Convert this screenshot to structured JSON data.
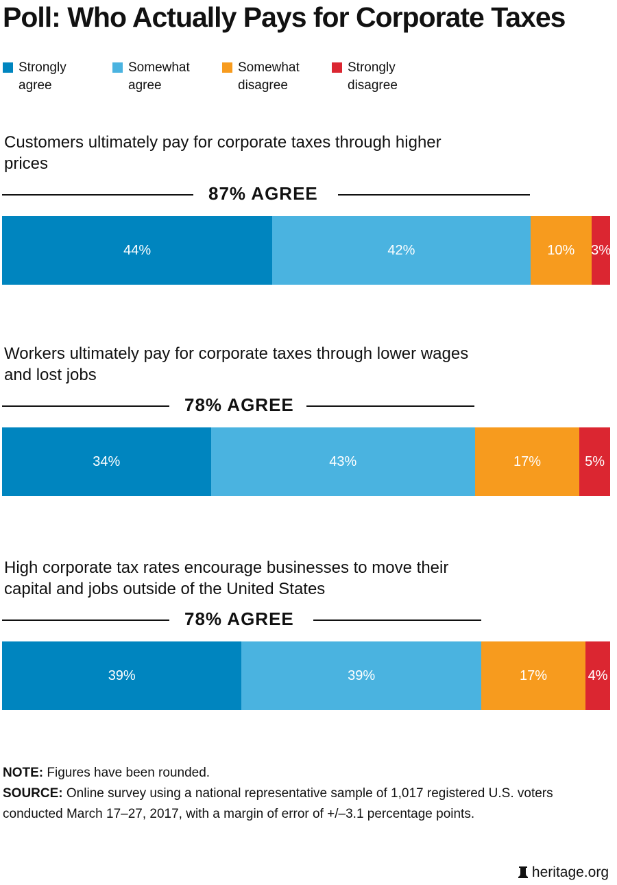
{
  "title": "Poll: Who Actually Pays for Corporate Taxes",
  "legend": [
    {
      "label": "Strongly agree",
      "color": "#0085BF"
    },
    {
      "label": "Somewhat agree",
      "color": "#4AB3E0"
    },
    {
      "label": "Somewhat disagree",
      "color": "#F79B1E"
    },
    {
      "label": "Strongly disagree",
      "color": "#DB2631"
    }
  ],
  "chart_data": {
    "type": "bar",
    "orientation": "horizontal-stacked",
    "title": "Poll: Who Actually Pays for Corporate Taxes",
    "series_names": [
      "Strongly agree",
      "Somewhat agree",
      "Somewhat disagree",
      "Strongly disagree"
    ],
    "colors": [
      "#0085BF",
      "#4AB3E0",
      "#F79B1E",
      "#DB2631"
    ],
    "questions": [
      {
        "statement": "Customers ultimately pay for corporate taxes through higher prices",
        "agree_label": "87% AGREE",
        "values": [
          44,
          42,
          10,
          3
        ],
        "labels": [
          "44%",
          "42%",
          "10%",
          "3%"
        ]
      },
      {
        "statement": "Workers ultimately pay for corporate taxes through lower wages and lost jobs",
        "agree_label": "78% AGREE",
        "values": [
          34,
          43,
          17,
          5
        ],
        "labels": [
          "34%",
          "43%",
          "17%",
          "5%"
        ]
      },
      {
        "statement": "High corporate tax rates encourage businesses to move their capital and jobs outside of the United States",
        "agree_label": "78% AGREE",
        "values": [
          39,
          39,
          17,
          4
        ],
        "labels": [
          "39%",
          "39%",
          "17%",
          "4%"
        ]
      }
    ],
    "xlabel": "",
    "ylabel": "",
    "legend_position": "top-left"
  },
  "note": {
    "label": "NOTE:",
    "text": " Figures have been rounded."
  },
  "source": {
    "label": "SOURCE:",
    "text": " Online survey using a national representative sample of 1,017 registered U.S. voters conducted March 17–27, 2017, with a margin of error of +/–3.1 percentage points."
  },
  "logo": {
    "text": "heritage.org",
    "icon": "liberty-bell-icon"
  }
}
